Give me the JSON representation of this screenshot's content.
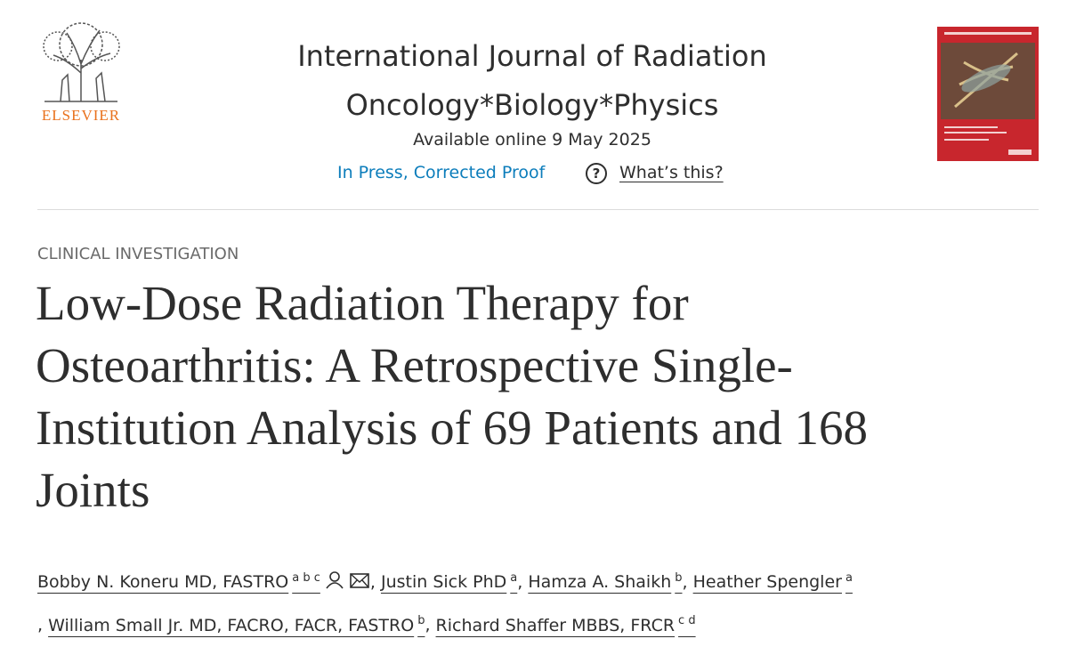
{
  "header": {
    "publisher": "ELSEVIER",
    "journal_lines": [
      "International Journal of Radiation",
      "Oncology*Biology*Physics"
    ],
    "available": "Available online 9 May 2025",
    "status": "In Press, Corrected Proof",
    "help_icon": "?",
    "help": "What’s this?"
  },
  "article": {
    "section": "CLINICAL INVESTIGATION",
    "title_lines": [
      "Low-Dose Radiation Therapy for",
      "Osteoarthritis: A Retrospective Single-",
      "Institution Analysis of 69 Patients and 168",
      "Joints"
    ],
    "separator": ",",
    "authors": [
      {
        "name": "Bobby N. Koneru MD, FASTRO",
        "affiliations": "a b c"
      },
      {
        "name": "Justin Sick PhD",
        "affiliations": "a"
      },
      {
        "name": "Hamza A. Shaikh",
        "affiliations": "b"
      },
      {
        "name": "Heather Spengler",
        "affiliations": "a"
      },
      {
        "name": "William Small Jr. MD, FACRO, FACR, FASTRO",
        "affiliations": "b"
      },
      {
        "name": "Richard Shaffer MBBS, FRCR",
        "affiliations": "c d"
      }
    ]
  }
}
